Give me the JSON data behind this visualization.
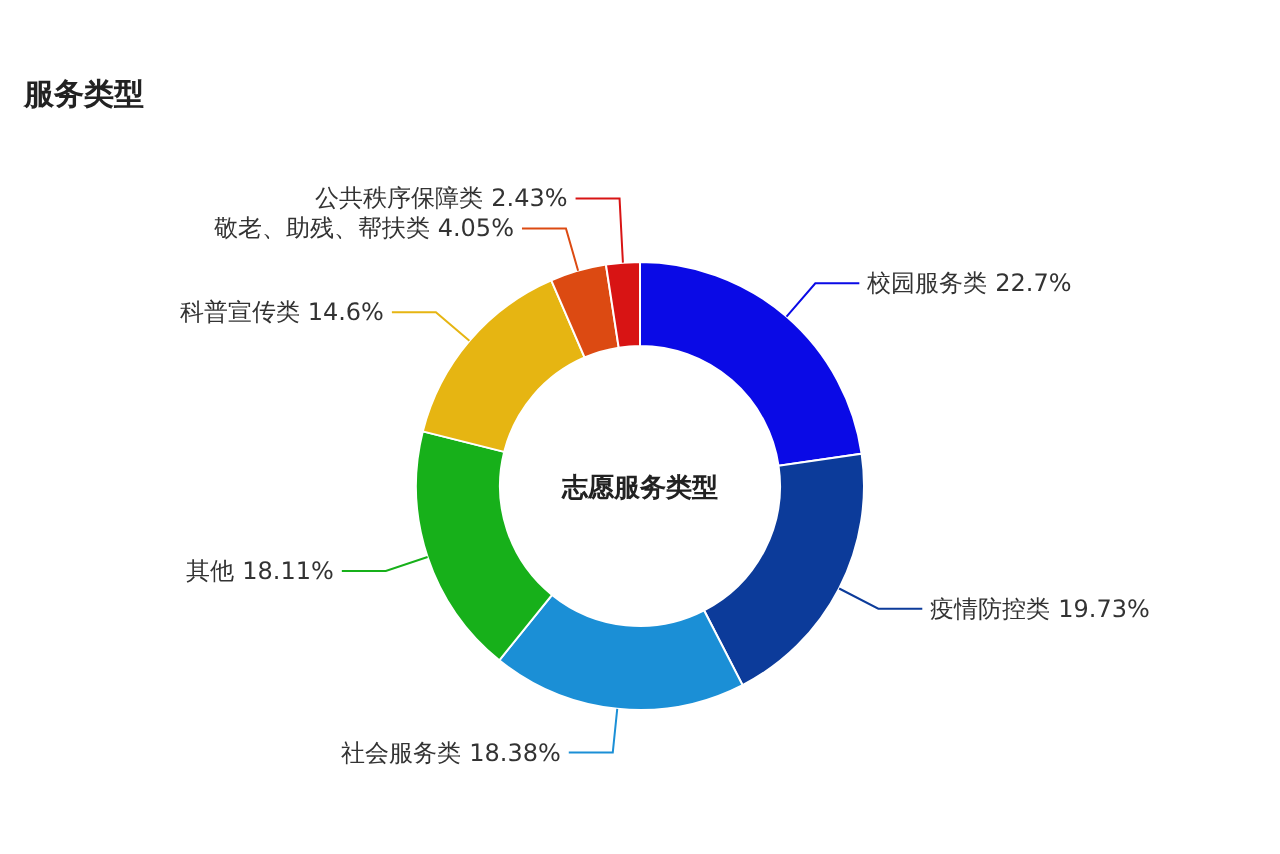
{
  "chart_data": {
    "type": "donut",
    "title": "服务类型",
    "annotations": [
      "志愿服务类型"
    ],
    "categories": [
      "校园服务类",
      "疫情防控类",
      "社会服务类",
      "其他",
      "科普宣传类",
      "敬老、助残、帮扶类",
      "公共秩序保障类"
    ],
    "values": [
      22.7,
      19.73,
      18.38,
      18.11,
      14.6,
      4.05,
      2.43
    ],
    "colors": [
      "#0a0ae6",
      "#0c3b9a",
      "#1b8fd6",
      "#17b01a",
      "#e6b512",
      "#dc4a12",
      "#d81414"
    ],
    "value_labels": [
      "22.7%",
      "19.73%",
      "18.38%",
      "18.11%",
      "14.6%",
      "4.05%",
      "2.43%"
    ]
  }
}
